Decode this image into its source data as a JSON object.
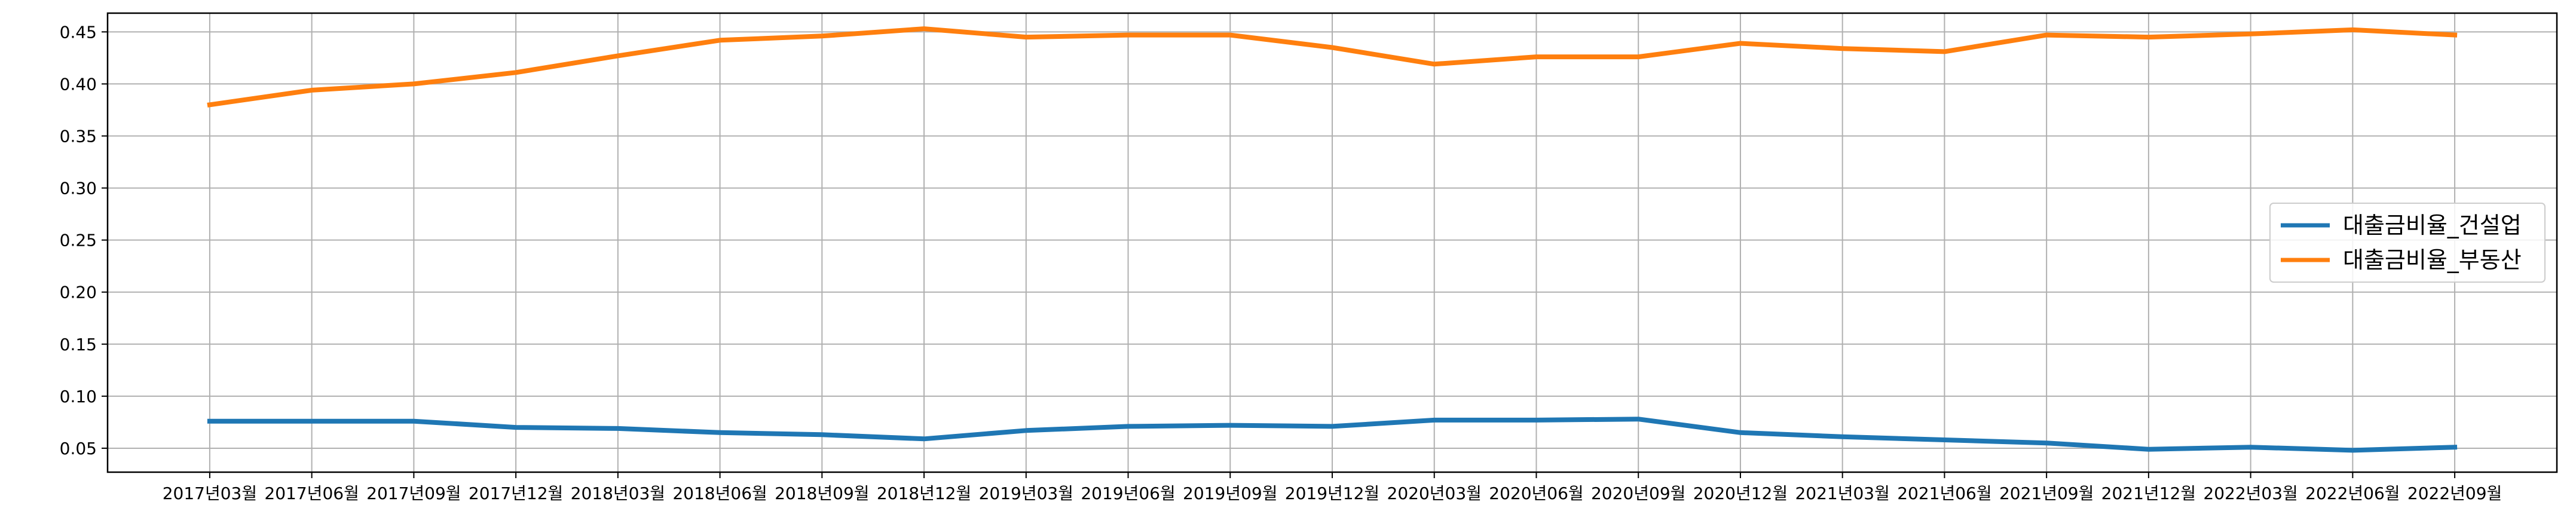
{
  "chart_data": {
    "type": "line",
    "title": "",
    "xlabel": "",
    "ylabel": "",
    "categories": [
      "2017년03월",
      "2017년06월",
      "2017년09월",
      "2017년12월",
      "2018년03월",
      "2018년06월",
      "2018년09월",
      "2018년12월",
      "2019년03월",
      "2019년06월",
      "2019년09월",
      "2019년12월",
      "2020년03월",
      "2020년06월",
      "2020년09월",
      "2020년12월",
      "2021년03월",
      "2021년06월",
      "2021년09월",
      "2021년12월",
      "2022년03월",
      "2022년06월",
      "2022년09월"
    ],
    "ylim": [
      0.027,
      0.468
    ],
    "yticks": [
      0.05,
      0.1,
      0.15,
      0.2,
      0.25,
      0.3,
      0.35,
      0.4,
      0.45
    ],
    "ytick_labels": [
      "0.05",
      "0.10",
      "0.15",
      "0.20",
      "0.25",
      "0.30",
      "0.35",
      "0.40",
      "0.45"
    ],
    "grid": true,
    "legend_position": "center-right",
    "series": [
      {
        "name": "대출금비율_건설업",
        "color": "#1f77b4",
        "values": [
          0.076,
          0.076,
          0.076,
          0.07,
          0.069,
          0.065,
          0.063,
          0.059,
          0.067,
          0.071,
          0.072,
          0.071,
          0.077,
          0.077,
          0.078,
          0.065,
          0.061,
          0.058,
          0.055,
          0.049,
          0.051,
          0.048,
          0.051
        ]
      },
      {
        "name": "대출금비율_부동산",
        "color": "#ff7f0e",
        "values": [
          0.38,
          0.394,
          0.4,
          0.411,
          0.427,
          0.442,
          0.446,
          0.453,
          0.445,
          0.447,
          0.447,
          0.435,
          0.419,
          0.426,
          0.426,
          0.439,
          0.434,
          0.431,
          0.447,
          0.445,
          0.448,
          0.452,
          0.447
        ]
      }
    ]
  }
}
